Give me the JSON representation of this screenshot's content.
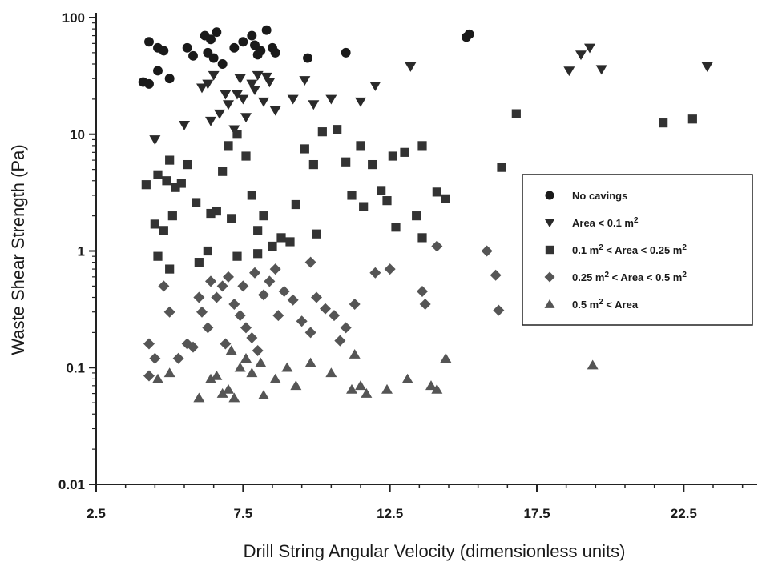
{
  "chart_data": {
    "type": "scatter",
    "title": "",
    "xlabel": "Drill String Angular Velocity (dimensionless units)",
    "ylabel": "Waste Shear Strength (Pa)",
    "xlim": [
      2.5,
      25
    ],
    "ylim": [
      0.01,
      100
    ],
    "y_scale": "log",
    "x_ticks": [
      "2.5",
      "7.5",
      "12.5",
      "17.5",
      "22.5"
    ],
    "y_ticks": [
      "0.01",
      "0.1",
      "1",
      "10",
      "100"
    ],
    "grid": false,
    "legend_position": "right",
    "series": [
      {
        "name": "No cavings",
        "marker": "circle",
        "color": "#1a1a1a",
        "points": [
          [
            4.3,
            62
          ],
          [
            4.6,
            55
          ],
          [
            4.8,
            52
          ],
          [
            4.6,
            35
          ],
          [
            4.3,
            27
          ],
          [
            4.1,
            28
          ],
          [
            5.0,
            30
          ],
          [
            5.6,
            55
          ],
          [
            5.8,
            47
          ],
          [
            6.2,
            70
          ],
          [
            6.4,
            65
          ],
          [
            6.6,
            75
          ],
          [
            6.3,
            50
          ],
          [
            6.5,
            45
          ],
          [
            6.8,
            40
          ],
          [
            7.2,
            55
          ],
          [
            7.5,
            62
          ],
          [
            7.8,
            70
          ],
          [
            7.9,
            58
          ],
          [
            8.0,
            48
          ],
          [
            8.1,
            52
          ],
          [
            8.3,
            78
          ],
          [
            8.5,
            55
          ],
          [
            8.6,
            50
          ],
          [
            9.7,
            45
          ],
          [
            11.0,
            50
          ],
          [
            15.1,
            68
          ],
          [
            15.2,
            72
          ]
        ]
      },
      {
        "name": "Area < 0.1 m²",
        "marker": "triangle-down",
        "color": "#2a2a2a",
        "points": [
          [
            4.5,
            9
          ],
          [
            5.5,
            12
          ],
          [
            6.1,
            25
          ],
          [
            6.3,
            27
          ],
          [
            6.5,
            32
          ],
          [
            6.7,
            15
          ],
          [
            6.9,
            22
          ],
          [
            7.0,
            18
          ],
          [
            7.2,
            11
          ],
          [
            7.4,
            30
          ],
          [
            7.5,
            20
          ],
          [
            7.6,
            14
          ],
          [
            7.8,
            27
          ],
          [
            8.0,
            32
          ],
          [
            8.2,
            19
          ],
          [
            8.4,
            28
          ],
          [
            8.6,
            16
          ],
          [
            9.2,
            20
          ],
          [
            9.6,
            29
          ],
          [
            9.9,
            18
          ],
          [
            10.5,
            20
          ],
          [
            11.5,
            19
          ],
          [
            12.0,
            26
          ],
          [
            13.2,
            38
          ],
          [
            18.6,
            35
          ],
          [
            19.0,
            48
          ],
          [
            19.3,
            55
          ],
          [
            19.7,
            36
          ],
          [
            23.3,
            38
          ],
          [
            6.4,
            13
          ],
          [
            7.3,
            22
          ],
          [
            7.9,
            24
          ],
          [
            8.3,
            31
          ]
        ]
      },
      {
        "name": "0.1 m² < Area < 0.25 m²",
        "marker": "square",
        "color": "#333333",
        "points": [
          [
            4.2,
            3.7
          ],
          [
            4.6,
            4.5
          ],
          [
            4.9,
            4.0
          ],
          [
            5.2,
            3.5
          ],
          [
            5.0,
            6.0
          ],
          [
            5.4,
            3.8
          ],
          [
            5.6,
            5.5
          ],
          [
            5.1,
            2.0
          ],
          [
            4.5,
            1.7
          ],
          [
            4.8,
            1.5
          ],
          [
            4.6,
            0.9
          ],
          [
            5.0,
            0.7
          ],
          [
            6.0,
            0.8
          ],
          [
            6.3,
            1.0
          ],
          [
            6.6,
            2.2
          ],
          [
            6.8,
            4.8
          ],
          [
            7.0,
            8.0
          ],
          [
            7.3,
            10.0
          ],
          [
            7.6,
            6.5
          ],
          [
            7.8,
            3.0
          ],
          [
            8.0,
            1.5
          ],
          [
            8.2,
            2.0
          ],
          [
            8.5,
            1.1
          ],
          [
            8.8,
            1.3
          ],
          [
            9.1,
            1.2
          ],
          [
            9.3,
            2.5
          ],
          [
            9.6,
            7.5
          ],
          [
            9.9,
            5.5
          ],
          [
            10.2,
            10.5
          ],
          [
            10.7,
            11.0
          ],
          [
            11.0,
            5.8
          ],
          [
            11.2,
            3.0
          ],
          [
            11.5,
            8.0
          ],
          [
            11.9,
            5.5
          ],
          [
            12.2,
            3.3
          ],
          [
            12.4,
            2.7
          ],
          [
            12.6,
            6.5
          ],
          [
            13.0,
            7.0
          ],
          [
            13.4,
            2.0
          ],
          [
            13.6,
            8.0
          ],
          [
            14.1,
            3.2
          ],
          [
            14.4,
            2.8
          ],
          [
            11.6,
            2.4
          ],
          [
            12.7,
            1.6
          ],
          [
            13.6,
            1.3
          ],
          [
            16.3,
            5.2
          ],
          [
            16.8,
            15.0
          ],
          [
            21.8,
            12.5
          ],
          [
            22.8,
            13.5
          ],
          [
            10.0,
            1.4
          ],
          [
            7.3,
            0.9
          ],
          [
            8.0,
            0.95
          ],
          [
            6.4,
            2.1
          ],
          [
            5.9,
            2.6
          ],
          [
            7.1,
            1.9
          ]
        ]
      },
      {
        "name": "0.25 m² < Area < 0.5 m²",
        "marker": "diamond",
        "color": "#555555",
        "points": [
          [
            4.8,
            0.5
          ],
          [
            4.3,
            0.16
          ],
          [
            4.5,
            0.12
          ],
          [
            4.3,
            0.085
          ],
          [
            5.0,
            0.3
          ],
          [
            5.6,
            0.16
          ],
          [
            5.8,
            0.15
          ],
          [
            6.1,
            0.3
          ],
          [
            6.3,
            0.22
          ],
          [
            6.6,
            0.4
          ],
          [
            6.8,
            0.5
          ],
          [
            7.0,
            0.6
          ],
          [
            7.2,
            0.35
          ],
          [
            7.4,
            0.28
          ],
          [
            7.6,
            0.22
          ],
          [
            7.8,
            0.18
          ],
          [
            8.0,
            0.14
          ],
          [
            8.2,
            0.42
          ],
          [
            8.4,
            0.55
          ],
          [
            8.6,
            0.7
          ],
          [
            8.9,
            0.45
          ],
          [
            9.2,
            0.38
          ],
          [
            9.5,
            0.25
          ],
          [
            9.8,
            0.2
          ],
          [
            10.0,
            0.4
          ],
          [
            10.3,
            0.32
          ],
          [
            10.6,
            0.28
          ],
          [
            11.0,
            0.22
          ],
          [
            11.3,
            0.35
          ],
          [
            12.0,
            0.65
          ],
          [
            12.5,
            0.7
          ],
          [
            13.6,
            0.45
          ],
          [
            13.7,
            0.35
          ],
          [
            14.1,
            1.1
          ],
          [
            15.8,
            1.0
          ],
          [
            16.1,
            0.62
          ],
          [
            16.2,
            0.31
          ],
          [
            9.8,
            0.8
          ],
          [
            7.5,
            0.5
          ],
          [
            6.0,
            0.4
          ],
          [
            5.3,
            0.12
          ],
          [
            6.9,
            0.16
          ],
          [
            8.7,
            0.28
          ],
          [
            10.8,
            0.17
          ],
          [
            7.9,
            0.65
          ],
          [
            6.4,
            0.55
          ]
        ]
      },
      {
        "name": "0.5 m² < Area",
        "marker": "triangle-up",
        "color": "#555555",
        "points": [
          [
            4.6,
            0.08
          ],
          [
            5.0,
            0.09
          ],
          [
            6.0,
            0.055
          ],
          [
            6.4,
            0.08
          ],
          [
            6.8,
            0.06
          ],
          [
            7.0,
            0.065
          ],
          [
            7.2,
            0.055
          ],
          [
            7.4,
            0.1
          ],
          [
            7.6,
            0.12
          ],
          [
            7.8,
            0.09
          ],
          [
            8.2,
            0.058
          ],
          [
            8.6,
            0.08
          ],
          [
            9.0,
            0.1
          ],
          [
            9.3,
            0.07
          ],
          [
            9.8,
            0.11
          ],
          [
            10.5,
            0.09
          ],
          [
            11.2,
            0.065
          ],
          [
            11.5,
            0.07
          ],
          [
            11.7,
            0.06
          ],
          [
            12.4,
            0.065
          ],
          [
            13.1,
            0.08
          ],
          [
            13.9,
            0.07
          ],
          [
            14.1,
            0.065
          ],
          [
            14.4,
            0.12
          ],
          [
            11.3,
            0.13
          ],
          [
            19.4,
            0.105
          ],
          [
            7.1,
            0.14
          ],
          [
            8.1,
            0.11
          ],
          [
            6.6,
            0.085
          ]
        ]
      }
    ]
  },
  "legend": {
    "items": [
      {
        "marker": "circle",
        "pre": "No cavings",
        "sup1": "",
        "mid": "",
        "sup2": "",
        "post": ""
      },
      {
        "marker": "triangle-down",
        "pre": "Area < 0.1 m",
        "sup1": "2",
        "mid": "",
        "sup2": "",
        "post": ""
      },
      {
        "marker": "square",
        "pre": "0.1 m",
        "sup1": "2",
        "mid": " < Area < 0.25 m",
        "sup2": "2",
        "post": ""
      },
      {
        "marker": "diamond",
        "pre": "0.25 m",
        "sup1": "2",
        "mid": " < Area < 0.5 m",
        "sup2": "2",
        "post": ""
      },
      {
        "marker": "triangle-up",
        "pre": "0.5 m",
        "sup1": "2",
        "mid": " < Area",
        "sup2": "",
        "post": ""
      }
    ]
  },
  "colors": {
    "axis": "#222222",
    "background": "#ffffff"
  }
}
